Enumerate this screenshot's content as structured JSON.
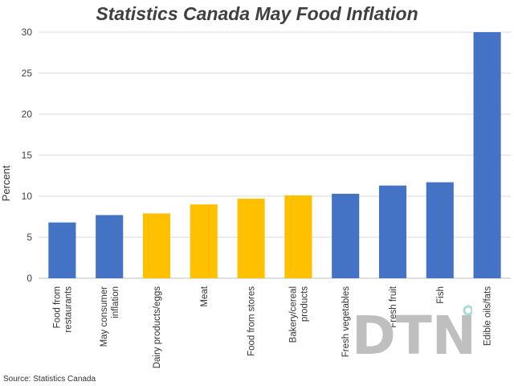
{
  "title": "Statistics Canada May Food Inflation",
  "source": "Source: Statistics Canada",
  "watermark": "DTN",
  "colors": {
    "blue": "#4472C4",
    "gold": "#FFC000",
    "grid": "#D9D9D9",
    "watermark": "#BFBFBF",
    "watermark_dot": "#A8DCD6"
  },
  "chart_data": {
    "type": "bar",
    "title": "Statistics Canada May Food Inflation",
    "ylabel": "Percent",
    "xlabel": "",
    "ylim": [
      0,
      30
    ],
    "yticks": [
      0,
      5,
      10,
      15,
      20,
      25,
      30
    ],
    "grid": true,
    "categories": [
      "Food from restaurants",
      "May consumer inflation",
      "Dairy products/eggs",
      "Meat",
      "Food from stores",
      "Bakery/cereal products",
      "Fresh vegetables",
      "Fresh fruit",
      "Fish",
      "Edible oils/fats"
    ],
    "category_lines": [
      [
        "Food from",
        "restaurants"
      ],
      [
        "May consumer",
        "inflation"
      ],
      [
        "Dairy products/eggs"
      ],
      [
        "Meat"
      ],
      [
        "Food from stores"
      ],
      [
        "Bakery/cereal",
        "products"
      ],
      [
        "Fresh vegetables"
      ],
      [
        "Fresh fruit"
      ],
      [
        "Fish"
      ],
      [
        "Edible oils/fats"
      ]
    ],
    "values": [
      6.8,
      7.7,
      7.9,
      9.0,
      9.7,
      10.1,
      10.3,
      11.3,
      11.7,
      30.0
    ],
    "bar_colors": [
      "#4472C4",
      "#4472C4",
      "#FFC000",
      "#FFC000",
      "#FFC000",
      "#FFC000",
      "#4472C4",
      "#4472C4",
      "#4472C4",
      "#4472C4"
    ]
  }
}
